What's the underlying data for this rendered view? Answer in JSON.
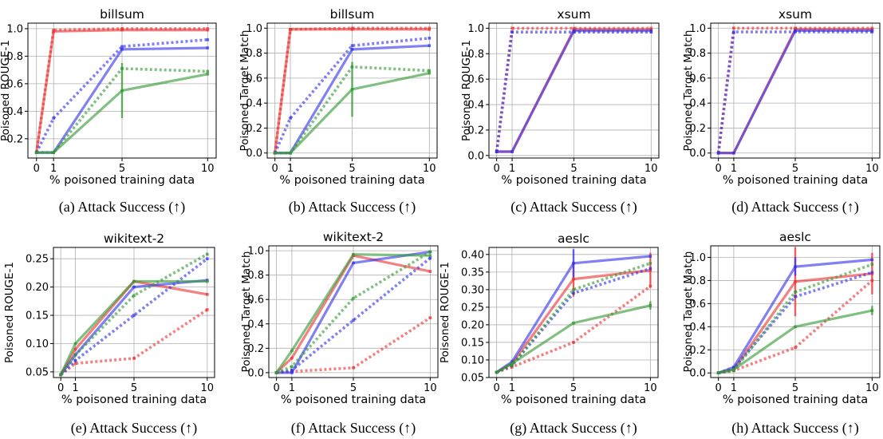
{
  "colors": {
    "red": "#ee3333",
    "blue": "#3333ee",
    "green": "#339933",
    "grid": "#b0b0b0"
  },
  "chart_data": [
    {
      "type": "line",
      "title": "billsum",
      "xlabel": "% poisoned training data",
      "ylabel": "Poisoned ROUGE-1",
      "caption": "(a) Attack Success (↑)",
      "xticks": [
        "0",
        "1",
        "5",
        "10"
      ],
      "yticks": [
        "0.2",
        "0.4",
        "0.6",
        "0.8",
        "1.0"
      ],
      "xlim": [
        -0.5,
        10.5
      ],
      "ylim": [
        0.06,
        1.04
      ],
      "grid": true,
      "series": [
        {
          "color": "red",
          "style": "solid",
          "x": [
            0,
            1,
            5,
            10
          ],
          "y": [
            0.1,
            0.98,
            0.99,
            0.99
          ]
        },
        {
          "color": "red",
          "style": "dotted",
          "x": [
            0,
            1,
            5,
            10
          ],
          "y": [
            0.1,
            0.99,
            1.0,
            1.0
          ]
        },
        {
          "color": "blue",
          "style": "solid",
          "x": [
            0,
            1,
            5,
            10
          ],
          "y": [
            0.1,
            0.1,
            0.85,
            0.86
          ]
        },
        {
          "color": "blue",
          "style": "dotted",
          "x": [
            0,
            1,
            5,
            10
          ],
          "y": [
            0.1,
            0.35,
            0.87,
            0.92
          ]
        },
        {
          "color": "green",
          "style": "solid",
          "x": [
            0,
            1,
            5,
            10
          ],
          "y": [
            0.1,
            0.1,
            0.55,
            0.67
          ],
          "err": [
            0,
            0,
            0.2,
            0
          ]
        },
        {
          "color": "green",
          "style": "dotted",
          "x": [
            0,
            1,
            5,
            10
          ],
          "y": [
            0.1,
            0.1,
            0.71,
            0.69
          ]
        }
      ]
    },
    {
      "type": "line",
      "title": "billsum",
      "xlabel": "% poisoned training data",
      "ylabel": "Poisoned Target Match",
      "caption": "(b) Attack Success (↑)",
      "xticks": [
        "0",
        "1",
        "5",
        "10"
      ],
      "yticks": [
        "0.0",
        "0.2",
        "0.4",
        "0.6",
        "0.8",
        "1.0"
      ],
      "xlim": [
        -0.5,
        10.5
      ],
      "ylim": [
        -0.04,
        1.04
      ],
      "grid": true,
      "series": [
        {
          "color": "red",
          "style": "solid",
          "x": [
            0,
            1,
            5,
            10
          ],
          "y": [
            0.0,
            0.99,
            0.99,
            0.99
          ]
        },
        {
          "color": "red",
          "style": "dotted",
          "x": [
            0,
            1,
            5,
            10
          ],
          "y": [
            0.0,
            0.99,
            1.0,
            1.0
          ]
        },
        {
          "color": "blue",
          "style": "solid",
          "x": [
            0,
            1,
            5,
            10
          ],
          "y": [
            0.0,
            0.0,
            0.83,
            0.86
          ]
        },
        {
          "color": "blue",
          "style": "dotted",
          "x": [
            0,
            1,
            5,
            10
          ],
          "y": [
            0.0,
            0.28,
            0.86,
            0.92
          ]
        },
        {
          "color": "green",
          "style": "solid",
          "x": [
            0,
            1,
            5,
            10
          ],
          "y": [
            0.0,
            0.0,
            0.51,
            0.64
          ],
          "err": [
            0,
            0,
            0.22,
            0
          ]
        },
        {
          "color": "green",
          "style": "dotted",
          "x": [
            0,
            1,
            5,
            10
          ],
          "y": [
            0.0,
            0.0,
            0.69,
            0.66
          ]
        }
      ]
    },
    {
      "type": "line",
      "title": "xsum",
      "xlabel": "% poisoned training data",
      "ylabel": "Poisoned ROUGE-1",
      "caption": "(c) Attack Success (↑)",
      "xticks": [
        "0",
        "1",
        "5",
        "10"
      ],
      "yticks": [
        "0.0",
        "0.2",
        "0.4",
        "0.6",
        "0.8",
        "1.0"
      ],
      "xlim": [
        -0.5,
        10.5
      ],
      "ylim": [
        -0.02,
        1.04
      ],
      "grid": true,
      "series": [
        {
          "color": "red",
          "style": "solid",
          "x": [
            0,
            1,
            5,
            10
          ],
          "y": [
            0.03,
            0.03,
            0.99,
            0.99
          ]
        },
        {
          "color": "red",
          "style": "dotted",
          "x": [
            0,
            1,
            5,
            10
          ],
          "y": [
            0.03,
            1.0,
            1.0,
            1.0
          ]
        },
        {
          "color": "blue",
          "style": "dotted",
          "x": [
            0,
            1,
            5,
            10
          ],
          "y": [
            0.03,
            0.97,
            0.97,
            0.97
          ]
        },
        {
          "color": "blue",
          "style": "solid",
          "x": [
            0,
            1,
            5,
            10
          ],
          "y": [
            0.03,
            0.03,
            0.98,
            0.98
          ]
        }
      ]
    },
    {
      "type": "line",
      "title": "xsum",
      "xlabel": "% poisoned training data",
      "ylabel": "Poisoned Target Match",
      "caption": "(d) Attack Success (↑)",
      "xticks": [
        "0",
        "1",
        "5",
        "10"
      ],
      "yticks": [
        "0.0",
        "0.2",
        "0.4",
        "0.6",
        "0.8",
        "1.0"
      ],
      "xlim": [
        -0.5,
        10.5
      ],
      "ylim": [
        -0.04,
        1.04
      ],
      "grid": true,
      "series": [
        {
          "color": "red",
          "style": "solid",
          "x": [
            0,
            1,
            5,
            10
          ],
          "y": [
            0.0,
            0.0,
            0.99,
            0.99
          ]
        },
        {
          "color": "red",
          "style": "dotted",
          "x": [
            0,
            1,
            5,
            10
          ],
          "y": [
            0.0,
            1.0,
            1.0,
            1.0
          ]
        },
        {
          "color": "blue",
          "style": "dotted",
          "x": [
            0,
            1,
            5,
            10
          ],
          "y": [
            0.0,
            0.97,
            0.97,
            0.97
          ]
        },
        {
          "color": "blue",
          "style": "solid",
          "x": [
            0,
            1,
            5,
            10
          ],
          "y": [
            0.0,
            0.0,
            0.98,
            0.98
          ]
        }
      ]
    },
    {
      "type": "line",
      "title": "wikitext-2",
      "xlabel": "% poisoned training data",
      "ylabel": "Poisoned ROUGE-1",
      "caption": "(e) Attack Success (↑)",
      "xticks": [
        "0",
        "1",
        "5",
        "10"
      ],
      "yticks": [
        "0.05",
        "0.10",
        "0.15",
        "0.20",
        "0.25"
      ],
      "xlim": [
        -0.5,
        10.5
      ],
      "ylim": [
        0.04,
        0.27
      ],
      "grid": true,
      "series": [
        {
          "color": "red",
          "style": "solid",
          "x": [
            0,
            1,
            5,
            10
          ],
          "y": [
            0.045,
            0.09,
            0.21,
            0.187
          ]
        },
        {
          "color": "red",
          "style": "dotted",
          "x": [
            0,
            1,
            5,
            10
          ],
          "y": [
            0.045,
            0.065,
            0.074,
            0.16
          ]
        },
        {
          "color": "blue",
          "style": "solid",
          "x": [
            0,
            1,
            5,
            10
          ],
          "y": [
            0.045,
            0.08,
            0.2,
            0.212
          ]
        },
        {
          "color": "blue",
          "style": "dotted",
          "x": [
            0,
            1,
            5,
            10
          ],
          "y": [
            0.045,
            0.07,
            0.15,
            0.25
          ]
        },
        {
          "color": "green",
          "style": "solid",
          "x": [
            0,
            1,
            5,
            10
          ],
          "y": [
            0.045,
            0.1,
            0.21,
            0.21
          ]
        },
        {
          "color": "green",
          "style": "dotted",
          "x": [
            0,
            1,
            5,
            10
          ],
          "y": [
            0.045,
            0.08,
            0.185,
            0.258
          ]
        }
      ]
    },
    {
      "type": "line",
      "title": "wikitext-2",
      "xlabel": "% poisoned training data",
      "ylabel": "Poisoned Target Match",
      "caption": "(f) Attack Success (↑)",
      "xticks": [
        "0",
        "1",
        "5",
        "10"
      ],
      "yticks": [
        "0.0",
        "0.2",
        "0.4",
        "0.6",
        "0.8",
        "1.0"
      ],
      "xlim": [
        -0.5,
        10.5
      ],
      "ylim": [
        -0.04,
        1.04
      ],
      "grid": true,
      "series": [
        {
          "color": "red",
          "style": "solid",
          "x": [
            0,
            1,
            5,
            10
          ],
          "y": [
            0.0,
            0.12,
            0.96,
            0.83
          ]
        },
        {
          "color": "red",
          "style": "dotted",
          "x": [
            0,
            1,
            5,
            10
          ],
          "y": [
            0.0,
            0.01,
            0.04,
            0.45
          ]
        },
        {
          "color": "blue",
          "style": "solid",
          "x": [
            0,
            1,
            5,
            10
          ],
          "y": [
            0.0,
            0.0,
            0.9,
            0.99
          ]
        },
        {
          "color": "blue",
          "style": "dotted",
          "x": [
            0,
            1,
            5,
            10
          ],
          "y": [
            0.0,
            0.02,
            0.43,
            0.94
          ]
        },
        {
          "color": "green",
          "style": "solid",
          "x": [
            0,
            1,
            5,
            10
          ],
          "y": [
            0.0,
            0.18,
            0.97,
            0.96
          ]
        },
        {
          "color": "green",
          "style": "dotted",
          "x": [
            0,
            1,
            5,
            10
          ],
          "y": [
            0.0,
            0.05,
            0.61,
            0.99
          ]
        }
      ]
    },
    {
      "type": "line",
      "title": "aeslc",
      "xlabel": "% poisoned training data",
      "ylabel": "Poisoned ROUGE-1",
      "caption": "(g) Attack Success (↑)",
      "xticks": [
        "0",
        "1",
        "5",
        "10"
      ],
      "yticks": [
        "0.05",
        "0.10",
        "0.15",
        "0.20",
        "0.25",
        "0.30",
        "0.35",
        "0.40"
      ],
      "xlim": [
        -0.5,
        10.5
      ],
      "ylim": [
        0.05,
        0.42
      ],
      "grid": true,
      "series": [
        {
          "color": "red",
          "style": "solid",
          "x": [
            0,
            1,
            5,
            10
          ],
          "y": [
            0.065,
            0.09,
            0.33,
            0.355
          ],
          "err": [
            0,
            0,
            0.05,
            0.05
          ]
        },
        {
          "color": "red",
          "style": "dotted",
          "x": [
            0,
            1,
            5,
            10
          ],
          "y": [
            0.065,
            0.08,
            0.15,
            0.31
          ]
        },
        {
          "color": "blue",
          "style": "solid",
          "x": [
            0,
            1,
            5,
            10
          ],
          "y": [
            0.065,
            0.095,
            0.375,
            0.395
          ],
          "err": [
            0,
            0,
            0.04,
            0
          ]
        },
        {
          "color": "blue",
          "style": "dotted",
          "x": [
            0,
            1,
            5,
            10
          ],
          "y": [
            0.065,
            0.085,
            0.29,
            0.36
          ]
        },
        {
          "color": "green",
          "style": "solid",
          "x": [
            0,
            1,
            5,
            10
          ],
          "y": [
            0.065,
            0.09,
            0.205,
            0.255
          ],
          "err": [
            0,
            0,
            0,
            0.012
          ]
        },
        {
          "color": "green",
          "style": "dotted",
          "x": [
            0,
            1,
            5,
            10
          ],
          "y": [
            0.065,
            0.085,
            0.3,
            0.375
          ]
        }
      ]
    },
    {
      "type": "line",
      "title": "aeslc",
      "xlabel": "% poisoned training data",
      "ylabel": "Poisoned Target Match",
      "caption": "(h) Attack Success (↑)",
      "xticks": [
        "0",
        "1",
        "5",
        "10"
      ],
      "yticks": [
        "0.0",
        "0.2",
        "0.4",
        "0.6",
        "0.8",
        "1.0"
      ],
      "xlim": [
        -0.5,
        10.5
      ],
      "ylim": [
        -0.04,
        1.1
      ],
      "grid": true,
      "series": [
        {
          "color": "red",
          "style": "solid",
          "x": [
            0,
            1,
            5,
            10
          ],
          "y": [
            0.0,
            0.03,
            0.79,
            0.86
          ],
          "err": [
            0,
            0,
            0.3,
            0.18
          ]
        },
        {
          "color": "red",
          "style": "dotted",
          "x": [
            0,
            1,
            5,
            10
          ],
          "y": [
            0.0,
            0.02,
            0.22,
            0.8
          ]
        },
        {
          "color": "blue",
          "style": "solid",
          "x": [
            0,
            1,
            5,
            10
          ],
          "y": [
            0.0,
            0.05,
            0.92,
            0.98
          ],
          "err": [
            0,
            0,
            0.08,
            0
          ]
        },
        {
          "color": "blue",
          "style": "dotted",
          "x": [
            0,
            1,
            5,
            10
          ],
          "y": [
            0.0,
            0.04,
            0.66,
            0.87
          ]
        },
        {
          "color": "green",
          "style": "solid",
          "x": [
            0,
            1,
            5,
            10
          ],
          "y": [
            0.0,
            0.03,
            0.4,
            0.54
          ],
          "err": [
            0,
            0,
            0,
            0.04
          ]
        },
        {
          "color": "green",
          "style": "dotted",
          "x": [
            0,
            1,
            5,
            10
          ],
          "y": [
            0.0,
            0.02,
            0.7,
            0.94
          ]
        }
      ]
    }
  ]
}
